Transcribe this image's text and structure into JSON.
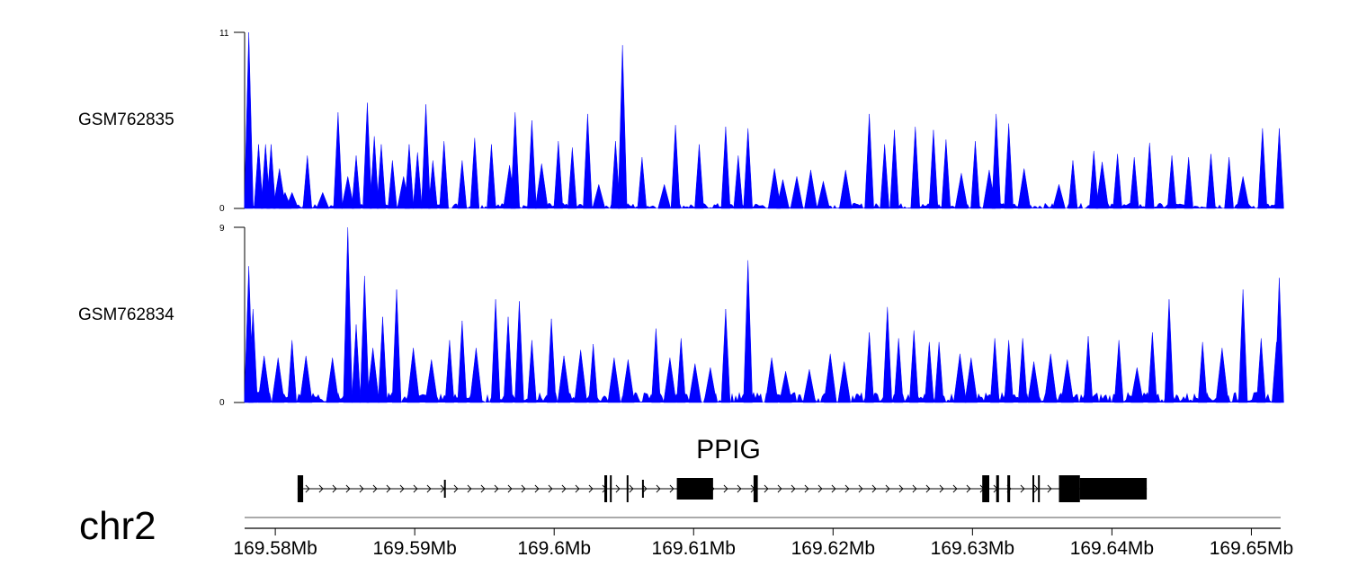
{
  "chart_data": {
    "type": "area",
    "title": "",
    "chromosome": "chr2",
    "x_unit": "Mb",
    "xlim": [
      169.5778,
      169.6521
    ],
    "x_ticks": [
      169.58,
      169.59,
      169.6,
      169.61,
      169.62,
      169.63,
      169.64,
      169.65
    ],
    "x_tick_labels": [
      "169.58Mb",
      "169.59Mb",
      "169.6Mb",
      "169.61Mb",
      "169.62Mb",
      "169.63Mb",
      "169.64Mb",
      "169.65Mb"
    ],
    "series": [
      {
        "name": "GSM762835",
        "color": "#0000ff",
        "ylim": [
          0,
          11
        ],
        "y_tick_labels": [
          "11",
          "0"
        ],
        "peaks": [
          [
            169.5781,
            11
          ],
          [
            169.5788,
            4
          ],
          [
            169.5793,
            4
          ],
          [
            169.5797,
            4
          ],
          [
            169.5803,
            2.5
          ],
          [
            169.5807,
            1
          ],
          [
            169.5812,
            1
          ],
          [
            169.5823,
            3.3
          ],
          [
            169.5834,
            1
          ],
          [
            169.5845,
            6
          ],
          [
            169.5852,
            2
          ],
          [
            169.5858,
            3.3
          ],
          [
            169.5866,
            6.6
          ],
          [
            169.5871,
            4.5
          ],
          [
            169.5876,
            4
          ],
          [
            169.5884,
            3
          ],
          [
            169.5892,
            2
          ],
          [
            169.5896,
            4
          ],
          [
            169.5902,
            3.5
          ],
          [
            169.5908,
            6.5
          ],
          [
            169.5913,
            3
          ],
          [
            169.5921,
            4.2
          ],
          [
            169.5934,
            3
          ],
          [
            169.5943,
            4.4
          ],
          [
            169.5955,
            4
          ],
          [
            169.5968,
            2.7
          ],
          [
            169.5972,
            6
          ],
          [
            169.5984,
            5.5
          ],
          [
            169.5991,
            2.8
          ],
          [
            169.6003,
            4.2
          ],
          [
            169.6013,
            3.8
          ],
          [
            169.6024,
            5.9
          ],
          [
            169.6032,
            1.5
          ],
          [
            169.6044,
            4.2
          ],
          [
            169.6049,
            10.2
          ],
          [
            169.6063,
            3.2
          ],
          [
            169.6079,
            1.5
          ],
          [
            169.6087,
            5.2
          ],
          [
            169.6104,
            4
          ],
          [
            169.6123,
            5.1
          ],
          [
            169.6132,
            3.3
          ],
          [
            169.6139,
            5
          ],
          [
            169.6158,
            2.5
          ],
          [
            169.6164,
            1.8
          ],
          [
            169.6174,
            2
          ],
          [
            169.6184,
            2.4
          ],
          [
            169.6193,
            1.7
          ],
          [
            169.6209,
            2.4
          ],
          [
            169.6226,
            5.9
          ],
          [
            169.6237,
            4
          ],
          [
            169.6244,
            4.9
          ],
          [
            169.6259,
            5.1
          ],
          [
            169.6272,
            4.9
          ],
          [
            169.6281,
            4.3
          ],
          [
            169.6292,
            2.2
          ],
          [
            169.6302,
            4.2
          ],
          [
            169.6312,
            2.4
          ],
          [
            169.6317,
            5.9
          ],
          [
            169.6326,
            5.3
          ],
          [
            169.6337,
            2.5
          ],
          [
            169.6362,
            1.5
          ],
          [
            169.6372,
            3
          ],
          [
            169.6387,
            3.6
          ],
          [
            169.6393,
            2.9
          ],
          [
            169.6404,
            3.4
          ],
          [
            169.6416,
            3.2
          ],
          [
            169.6427,
            4.1
          ],
          [
            169.6443,
            3.3
          ],
          [
            169.6455,
            3.2
          ],
          [
            169.6471,
            3.4
          ],
          [
            169.6484,
            3.2
          ],
          [
            169.6494,
            2
          ],
          [
            169.6508,
            5
          ],
          [
            169.652,
            5
          ]
        ]
      },
      {
        "name": "GSM762834",
        "color": "#0000ff",
        "ylim": [
          0,
          9
        ],
        "y_tick_labels": [
          "9",
          "0"
        ],
        "peaks": [
          [
            169.5781,
            7
          ],
          [
            169.5784,
            4.8
          ],
          [
            169.5792,
            2.4
          ],
          [
            169.5802,
            2.3
          ],
          [
            169.5812,
            3.2
          ],
          [
            169.5822,
            2.4
          ],
          [
            169.5841,
            2.3
          ],
          [
            169.5852,
            9
          ],
          [
            169.5858,
            4
          ],
          [
            169.5864,
            6.5
          ],
          [
            169.587,
            2.8
          ],
          [
            169.5877,
            4.4
          ],
          [
            169.5887,
            5.8
          ],
          [
            169.5899,
            2.8
          ],
          [
            169.5912,
            2.2
          ],
          [
            169.5925,
            3.2
          ],
          [
            169.5934,
            4.2
          ],
          [
            169.5944,
            2.8
          ],
          [
            169.5958,
            5.3
          ],
          [
            169.5967,
            4.4
          ],
          [
            169.5975,
            5.2
          ],
          [
            169.5984,
            3.2
          ],
          [
            169.5998,
            4.3
          ],
          [
            169.6007,
            2.4
          ],
          [
            169.6019,
            2.7
          ],
          [
            169.6028,
            3
          ],
          [
            169.6043,
            2.3
          ],
          [
            169.6053,
            2.2
          ],
          [
            169.6073,
            3.8
          ],
          [
            169.6083,
            2.3
          ],
          [
            169.6091,
            3.3
          ],
          [
            169.6101,
            2
          ],
          [
            169.6112,
            1.8
          ],
          [
            169.6123,
            4.8
          ],
          [
            169.6139,
            7.3
          ],
          [
            169.6156,
            2.3
          ],
          [
            169.6166,
            1.6
          ],
          [
            169.6183,
            1.7
          ],
          [
            169.6198,
            2.5
          ],
          [
            169.6208,
            2.1
          ],
          [
            169.6226,
            3.6
          ],
          [
            169.6239,
            4.9
          ],
          [
            169.6247,
            3.3
          ],
          [
            169.6258,
            3.7
          ],
          [
            169.6269,
            3.1
          ],
          [
            169.6276,
            3.1
          ],
          [
            169.6291,
            2.5
          ],
          [
            169.6299,
            2.3
          ],
          [
            169.6316,
            3.3
          ],
          [
            169.6326,
            3.2
          ],
          [
            169.6336,
            3.3
          ],
          [
            169.6344,
            2.1
          ],
          [
            169.6356,
            2.5
          ],
          [
            169.6368,
            2.2
          ],
          [
            169.6383,
            3.4
          ],
          [
            169.6405,
            3.2
          ],
          [
            169.6418,
            1.8
          ],
          [
            169.6429,
            3.6
          ],
          [
            169.6441,
            5.3
          ],
          [
            169.6465,
            3.1
          ],
          [
            169.6479,
            2.8
          ],
          [
            169.6494,
            5.8
          ],
          [
            169.6507,
            3.3
          ],
          [
            169.6518,
            3.1
          ],
          [
            169.652,
            6.4
          ]
        ]
      }
    ],
    "gene_track": {
      "gene_name": "PPIG",
      "strand": "+",
      "start": 169.5816,
      "end": 169.6425,
      "exons": [
        [
          169.5816,
          169.582
        ],
        [
          169.5921,
          169.5922
        ],
        [
          169.6036,
          169.6038
        ],
        [
          169.604,
          169.6041
        ],
        [
          169.6052,
          169.6053
        ],
        [
          169.6063,
          169.6064
        ],
        [
          169.6088,
          169.6114
        ],
        [
          169.6143,
          169.6146
        ],
        [
          169.6307,
          169.6312
        ],
        [
          169.6317,
          169.6319
        ],
        [
          169.6325,
          169.6327
        ],
        [
          169.6343,
          169.6344
        ],
        [
          169.6347,
          169.6348
        ],
        [
          169.6362,
          169.6377
        ],
        [
          169.6377,
          169.6425
        ]
      ]
    }
  }
}
